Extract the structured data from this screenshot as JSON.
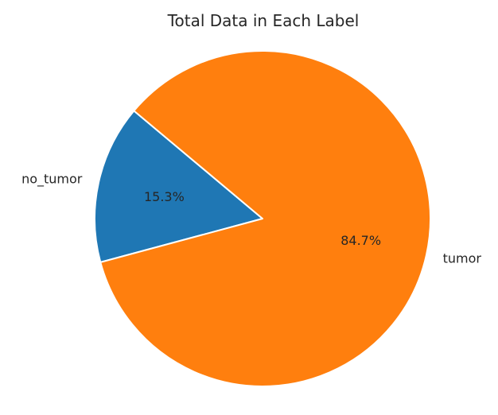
{
  "chart_data": {
    "type": "pie",
    "title": "Total Data in Each Label",
    "categories": [
      "no_tumor",
      "tumor"
    ],
    "values": [
      15.3,
      84.7
    ],
    "percent_labels": [
      "15.3%",
      "84.7%"
    ],
    "colors": [
      "#1f77b4",
      "#ff7f0e"
    ],
    "edge_color": "#ffffff",
    "start_angle_degrees": 140,
    "direction": "counterclockwise",
    "legend": "none",
    "grid": false
  }
}
